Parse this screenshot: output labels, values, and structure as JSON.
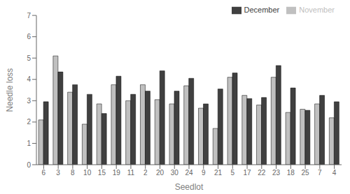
{
  "chart_data": {
    "type": "bar",
    "categories": [
      "6",
      "3",
      "8",
      "10",
      "15",
      "19",
      "11",
      "2",
      "20",
      "30",
      "24",
      "9",
      "21",
      "5",
      "17",
      "22",
      "23",
      "18",
      "25",
      "7",
      "4"
    ],
    "series": [
      {
        "name": "November",
        "color": "#c0c0c0",
        "values": [
          2.1,
          5.1,
          3.4,
          1.9,
          2.85,
          3.75,
          3.0,
          3.75,
          3.05,
          2.85,
          3.7,
          2.65,
          1.7,
          4.1,
          3.25,
          2.8,
          4.1,
          2.45,
          2.6,
          2.85,
          2.2
        ]
      },
      {
        "name": "December",
        "color": "#404040",
        "values": [
          2.95,
          4.35,
          3.75,
          3.3,
          2.4,
          4.15,
          3.3,
          3.45,
          4.4,
          3.45,
          4.05,
          2.85,
          3.55,
          4.3,
          3.1,
          3.15,
          4.65,
          3.6,
          2.55,
          3.25,
          2.95
        ]
      }
    ],
    "xlabel": "Seedlot",
    "ylabel": "Needle loss",
    "ylim": [
      0,
      7
    ],
    "yticks": [
      0,
      1,
      2,
      3,
      4,
      5,
      6,
      7
    ],
    "grid": false,
    "legend": "upper right"
  }
}
